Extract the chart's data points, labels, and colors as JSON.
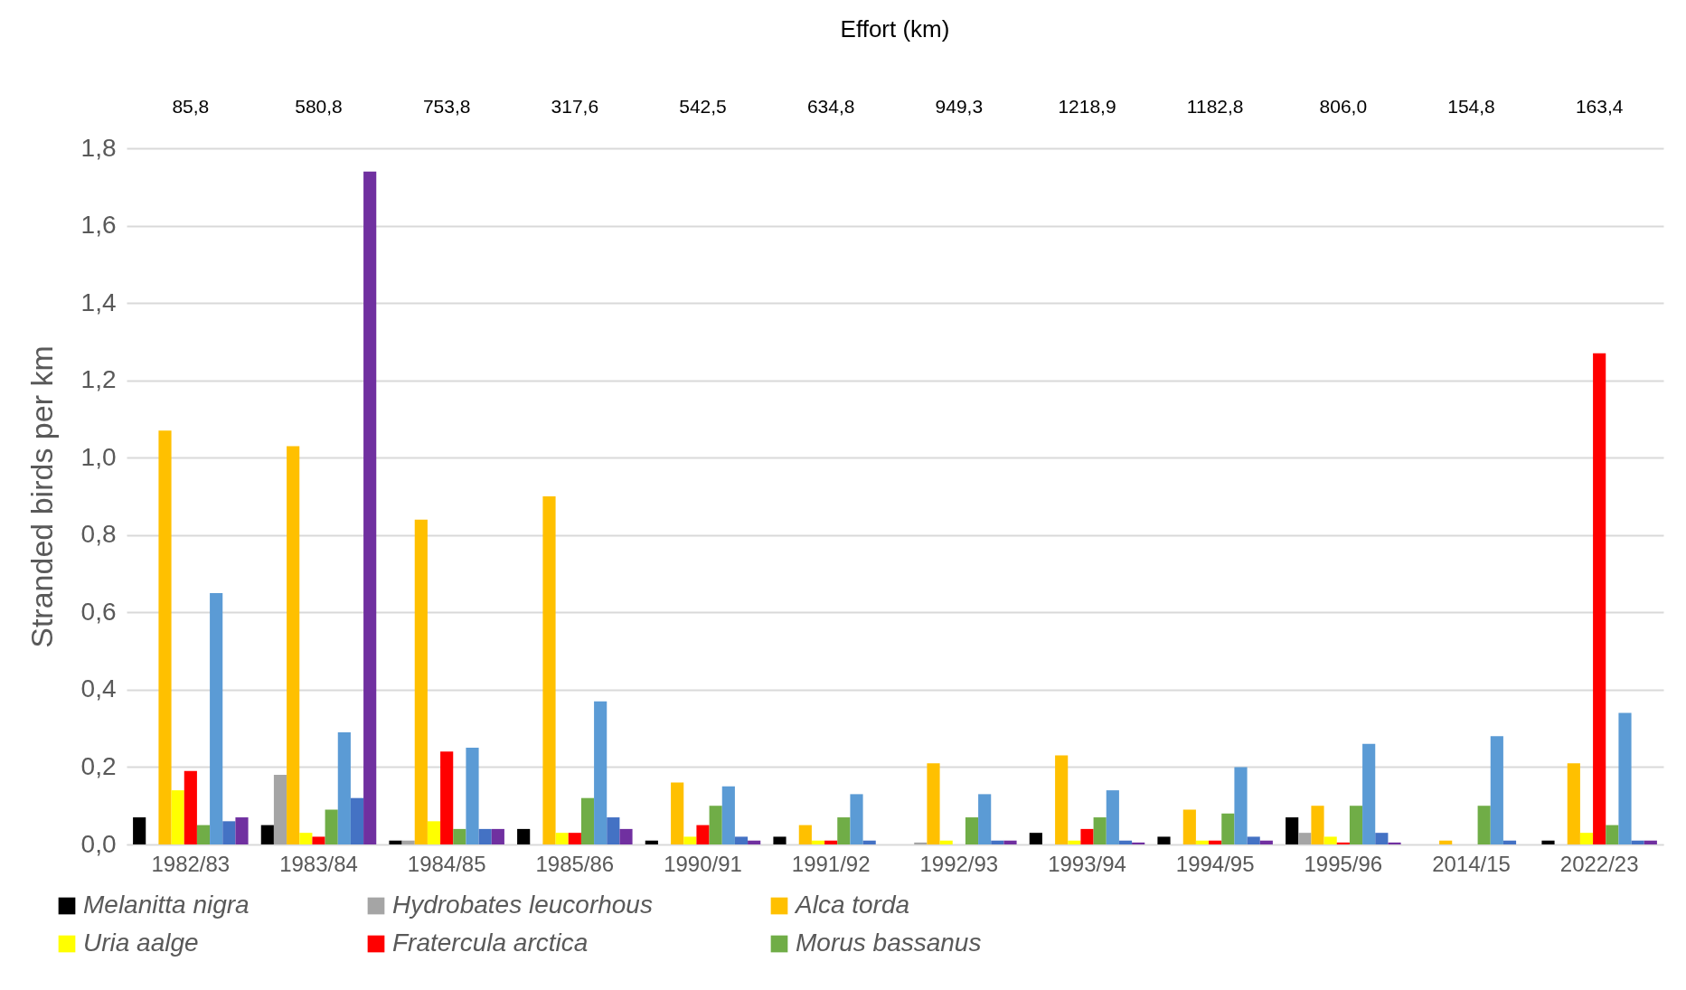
{
  "chart_data": {
    "type": "bar",
    "title": "Effort (km)",
    "ylabel": "Stranded birds per km",
    "categories": [
      "1982/83",
      "1983/84",
      "1984/85",
      "1985/86",
      "1990/91",
      "1991/92",
      "1992/93",
      "1993/94",
      "1994/95",
      "1995/96",
      "2014/15",
      "2022/23"
    ],
    "annotations": [
      "85,8",
      "580,8",
      "753,8",
      "317,6",
      "542,5",
      "634,8",
      "949,3",
      "1218,9",
      "1182,8",
      "806,0",
      "154,8",
      "163,4"
    ],
    "series": [
      {
        "name": "Melanitta nigra",
        "color": "#000000",
        "values": [
          0.07,
          0.05,
          0.01,
          0.04,
          0.01,
          0.02,
          0,
          0.03,
          0.02,
          0.07,
          0,
          0.01
        ]
      },
      {
        "name": "Hydrobates leucorhous",
        "color": "#a5a5a5",
        "values": [
          0,
          0.18,
          0.01,
          0,
          0,
          0,
          0.005,
          0,
          0,
          0.03,
          0,
          0
        ]
      },
      {
        "name": "Alca torda",
        "color": "#ffc000",
        "values": [
          1.07,
          1.03,
          0.84,
          0.9,
          0.16,
          0.05,
          0.21,
          0.23,
          0.09,
          0.1,
          0.01,
          0.21
        ]
      },
      {
        "name": "Uria aalge",
        "color": "#ffff00",
        "values": [
          0.14,
          0.03,
          0.06,
          0.03,
          0.02,
          0.01,
          0.01,
          0.01,
          0.01,
          0.02,
          0,
          0.03
        ]
      },
      {
        "name": "Fratercula arctica",
        "color": "#ff0000",
        "values": [
          0.19,
          0.02,
          0.24,
          0.03,
          0.05,
          0.01,
          0,
          0.04,
          0.01,
          0.005,
          0,
          1.27
        ]
      },
      {
        "name": "Morus bassanus",
        "color": "#70ad47",
        "values": [
          0.05,
          0.09,
          0.04,
          0.12,
          0.1,
          0.07,
          0.07,
          0.07,
          0.08,
          0.1,
          0.1,
          0.05
        ]
      },
      {
        "color": "#5b9bd5",
        "values": [
          0.65,
          0.29,
          0.25,
          0.37,
          0.15,
          0.13,
          0.13,
          0.14,
          0.2,
          0.26,
          0.28,
          0.34
        ]
      },
      {
        "color": "#4472c4",
        "values": [
          0.06,
          0.12,
          0.04,
          0.07,
          0.02,
          0.01,
          0.01,
          0.01,
          0.02,
          0.03,
          0.01,
          0.01
        ]
      },
      {
        "color": "#7030a0",
        "values": [
          0.07,
          1.74,
          0.04,
          0.04,
          0.01,
          0,
          0.01,
          0.005,
          0.01,
          0.005,
          0,
          0.01
        ]
      }
    ],
    "ylim": [
      0,
      1.8
    ],
    "yticks": [
      {
        "value": 0,
        "label": "0,0"
      },
      {
        "value": 0.2,
        "label": "0,2"
      },
      {
        "value": 0.4,
        "label": "0,4"
      },
      {
        "value": 0.6,
        "label": "0,6"
      },
      {
        "value": 0.8,
        "label": "0,8"
      },
      {
        "value": 1,
        "label": "1,0"
      },
      {
        "value": 1.2,
        "label": "1,2"
      },
      {
        "value": 1.4,
        "label": "1,4"
      },
      {
        "value": 1.6,
        "label": "1,6"
      },
      {
        "value": 1.8,
        "label": "1,8"
      }
    ],
    "grid": "y",
    "legend": "bottom"
  }
}
